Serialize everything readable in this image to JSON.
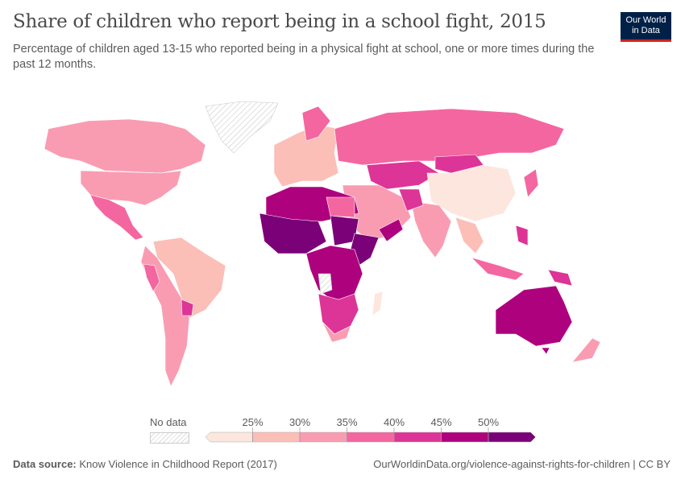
{
  "title": "Share of children who report being in a school fight, 2015",
  "subtitle": "Percentage of children aged 13-15 who reported being in a physical fight at school, one or more times during the past 12 months.",
  "logo": {
    "line1": "Our World",
    "line2": "in Data",
    "bg": "#002147",
    "accent": "#ce261e"
  },
  "legend": {
    "no_data_label": "No data",
    "ticks": [
      "25%",
      "30%",
      "35%",
      "40%",
      "45%",
      "50%"
    ],
    "bins": [
      {
        "range": "<25%",
        "color": "#fde6dd"
      },
      {
        "range": "25-30%",
        "color": "#fbbfb8"
      },
      {
        "range": "30-35%",
        "color": "#f99cb2"
      },
      {
        "range": "35-40%",
        "color": "#f466a0"
      },
      {
        "range": "40-45%",
        "color": "#dd3497"
      },
      {
        "range": "45-50%",
        "color": "#ae017e"
      },
      {
        "range": ">50%",
        "color": "#7a0177"
      }
    ]
  },
  "footer": {
    "source_label": "Data source:",
    "source": "Know Violence in Childhood Report (2017)",
    "url": "OurWorldinData.org/violence-against-rights-for-children | CC BY"
  }
}
